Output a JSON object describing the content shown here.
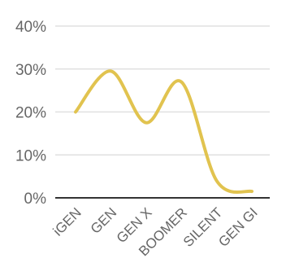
{
  "chart_data": {
    "type": "line",
    "categories": [
      "iGEN",
      "GEN",
      "GEN X",
      "BOOMER",
      "SILENT",
      "GEN GI"
    ],
    "series": [
      {
        "values": [
          20,
          29.5,
          17.5,
          27,
          4,
          1.5
        ],
        "color": "#e1c34f"
      }
    ],
    "y_ticks": [
      "0%",
      "10%",
      "20%",
      "30%",
      "40%"
    ],
    "ylim": [
      0,
      40
    ],
    "xlabel": "",
    "ylabel": "",
    "title": "",
    "grid": true,
    "legend": "none",
    "colors": {
      "line": "#e1c34f",
      "grid": "#e0e0e0",
      "baseline": "#333333",
      "text": "#666666"
    }
  }
}
